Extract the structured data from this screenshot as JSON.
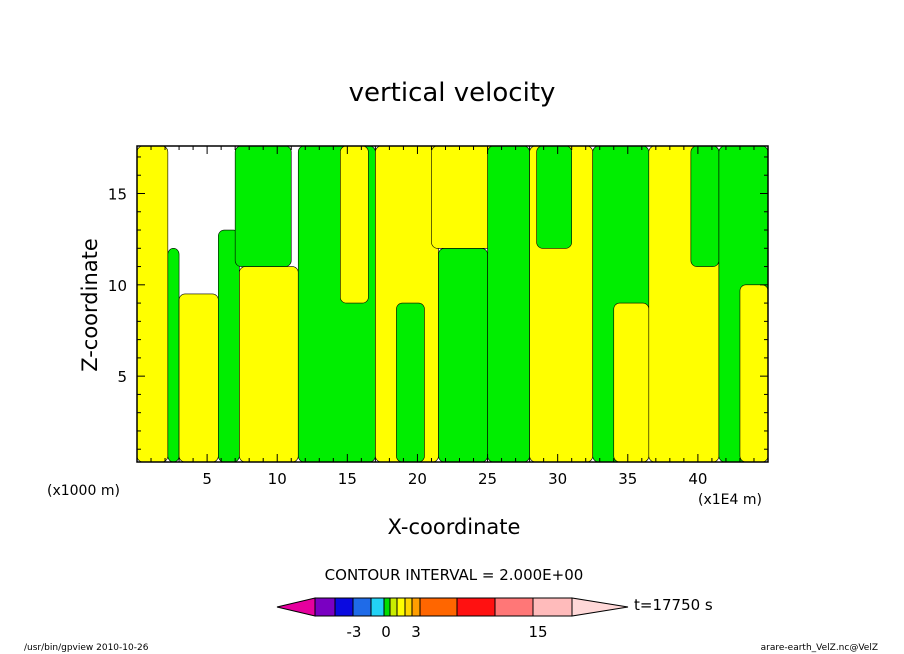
{
  "chart_data": {
    "type": "heatmap",
    "title": "vertical velocity",
    "xlabel": "X-coordinate",
    "ylabel": "Z-coordinate",
    "x_unit": "(x1E4 m)",
    "y_unit": "(x1000 m)",
    "xlim": [
      0,
      45
    ],
    "ylim": [
      0.3,
      17.6
    ],
    "x_ticks": [
      "5",
      "10",
      "15",
      "20",
      "25",
      "30",
      "35",
      "40"
    ],
    "y_ticks": [
      "5",
      "10",
      "15"
    ],
    "contour_interval": "CONTOUR INTERVAL = 2.000E+00",
    "time_label": "t=17750 s",
    "colorbar": {
      "colors": [
        "#e6009e",
        "#7a00c2",
        "#0a0ae0",
        "#1f6be8",
        "#22d2f5",
        "#00dd00",
        "#c9ec00",
        "#ffff00",
        "#ffd700",
        "#ff9e00",
        "#ff6600",
        "#ff1111",
        "#ff7777",
        "#ffbbbb",
        "#ffd8d8"
      ],
      "tick_labels": [
        "-3",
        "0",
        "3",
        "15"
      ]
    },
    "regions": [
      {
        "x": [
          0.0,
          2.2
        ],
        "z": [
          0.3,
          17.6
        ],
        "value": "yellow"
      },
      {
        "x": [
          2.2,
          3.0
        ],
        "z": [
          0.3,
          12.0
        ],
        "value": "green"
      },
      {
        "x": [
          3.0,
          5.8
        ],
        "z": [
          0.3,
          9.5
        ],
        "value": "yellow"
      },
      {
        "x": [
          5.8,
          7.3
        ],
        "z": [
          0.3,
          13.0
        ],
        "value": "green"
      },
      {
        "x": [
          7.3,
          11.5
        ],
        "z": [
          0.3,
          11.0
        ],
        "value": "yellow"
      },
      {
        "x": [
          7.0,
          11.0
        ],
        "z": [
          11.0,
          17.6
        ],
        "value": "green"
      },
      {
        "x": [
          11.5,
          17.0
        ],
        "z": [
          0.3,
          17.6
        ],
        "value": "green"
      },
      {
        "x": [
          14.5,
          16.5
        ],
        "z": [
          9.0,
          17.6
        ],
        "value": "yellow"
      },
      {
        "x": [
          17.0,
          21.5
        ],
        "z": [
          0.3,
          17.6
        ],
        "value": "yellow"
      },
      {
        "x": [
          18.5,
          20.5
        ],
        "z": [
          0.3,
          9.0
        ],
        "value": "green"
      },
      {
        "x": [
          21.5,
          25.0
        ],
        "z": [
          0.3,
          12.0
        ],
        "value": "green"
      },
      {
        "x": [
          21.0,
          26.0
        ],
        "z": [
          12.0,
          17.6
        ],
        "value": "yellow"
      },
      {
        "x": [
          25.0,
          28.0
        ],
        "z": [
          0.3,
          17.6
        ],
        "value": "green"
      },
      {
        "x": [
          28.0,
          32.5
        ],
        "z": [
          0.3,
          17.6
        ],
        "value": "yellow"
      },
      {
        "x": [
          28.5,
          31.0
        ],
        "z": [
          12.0,
          17.6
        ],
        "value": "green"
      },
      {
        "x": [
          32.5,
          36.5
        ],
        "z": [
          0.3,
          17.6
        ],
        "value": "green"
      },
      {
        "x": [
          34.0,
          36.5
        ],
        "z": [
          0.3,
          9.0
        ],
        "value": "yellow"
      },
      {
        "x": [
          36.5,
          41.5
        ],
        "z": [
          0.3,
          17.6
        ],
        "value": "yellow"
      },
      {
        "x": [
          39.5,
          41.5
        ],
        "z": [
          11.0,
          17.6
        ],
        "value": "green"
      },
      {
        "x": [
          41.5,
          45.0
        ],
        "z": [
          0.3,
          17.6
        ],
        "value": "green"
      },
      {
        "x": [
          43.0,
          45.0
        ],
        "z": [
          0.3,
          10.0
        ],
        "value": "yellow"
      }
    ]
  },
  "footer": {
    "left": "/usr/bin/gpview   2010-10-26",
    "right": "arare-earth_VelZ.nc@VelZ"
  },
  "colors": {
    "green": "#00ee00",
    "yellow": "#ffff00"
  }
}
